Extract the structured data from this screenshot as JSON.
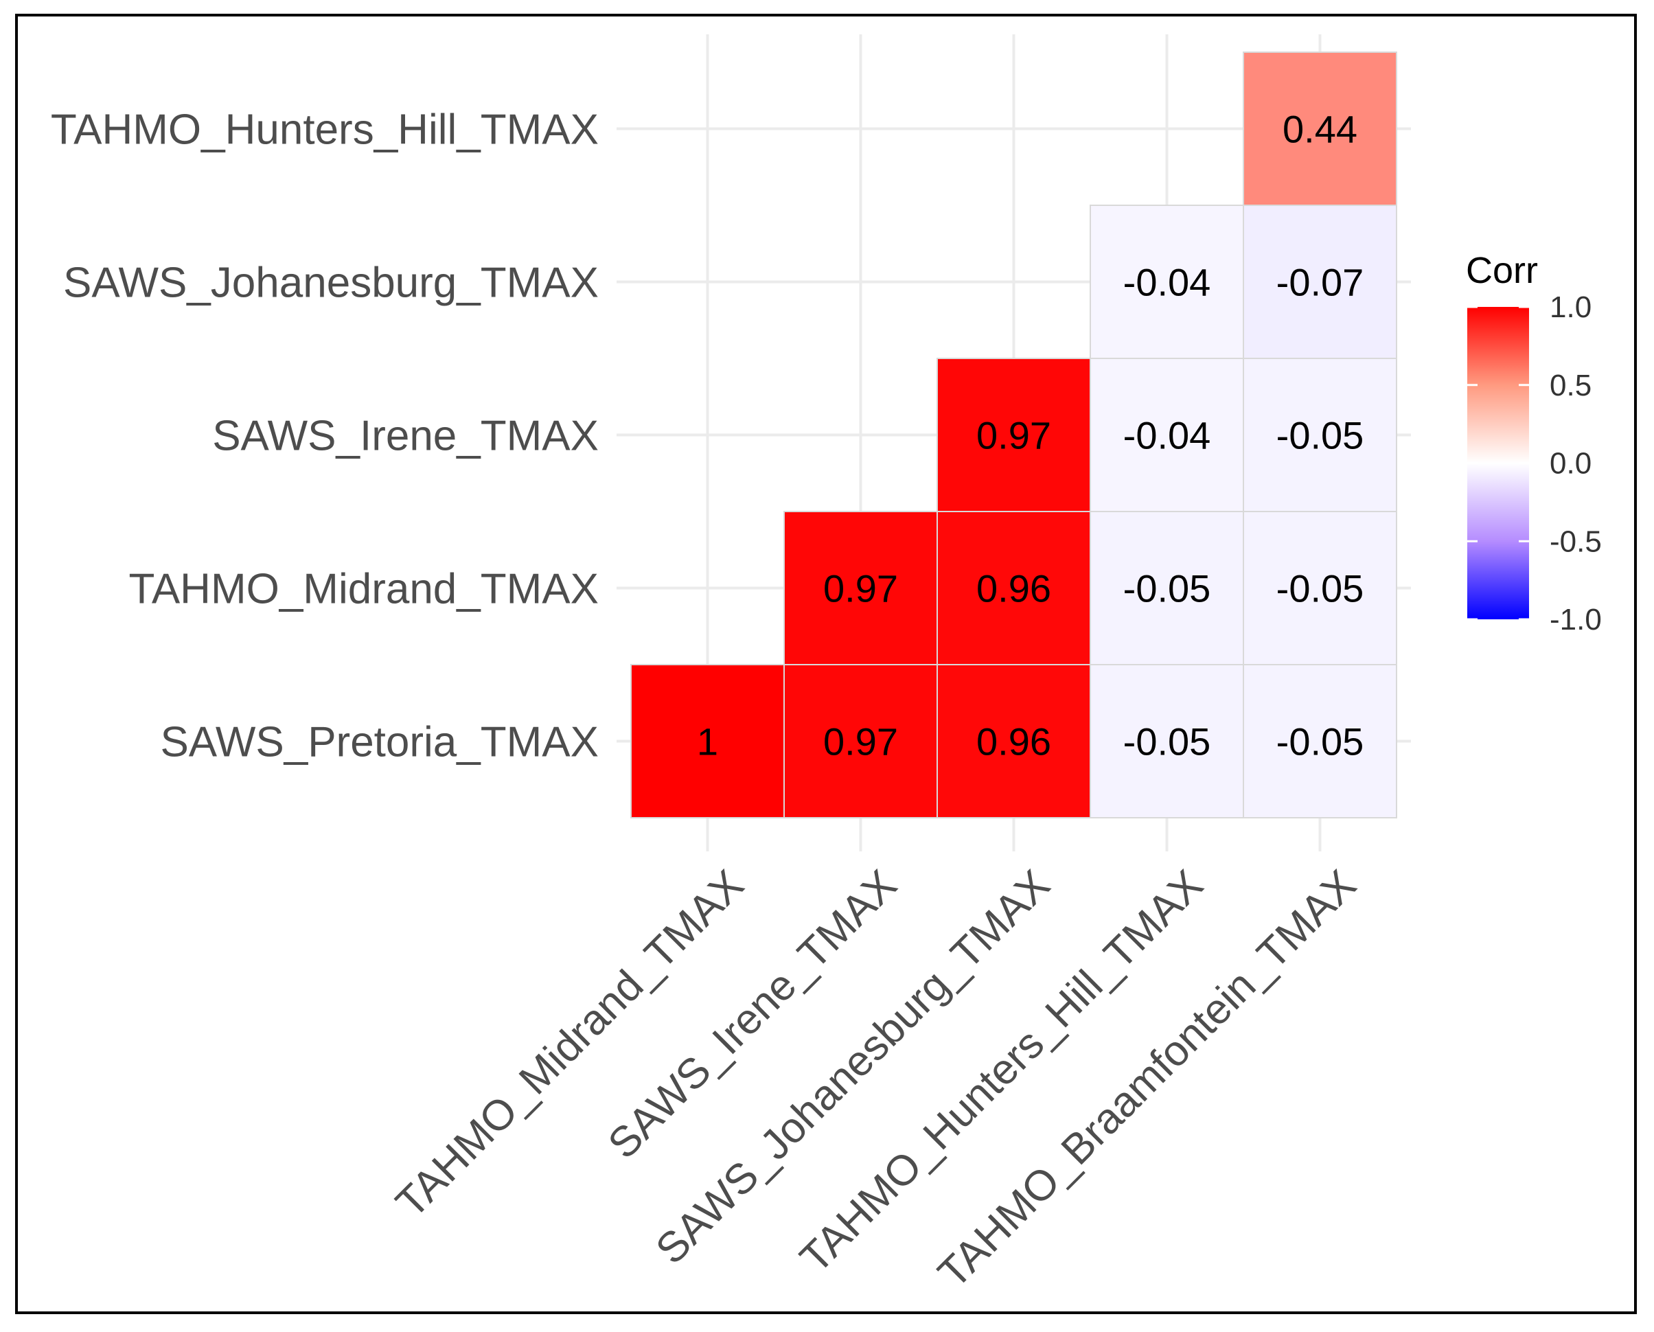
{
  "chart_data": {
    "type": "heatmap",
    "title": "",
    "x_categories": [
      "TAHMO_Midrand_TMAX",
      "SAWS_Irene_TMAX",
      "SAWS_Johanesburg_TMAX",
      "TAHMO_Hunters_Hill_TMAX",
      "TAHMO_Braamfontein_TMAX"
    ],
    "y_categories": [
      "SAWS_Pretoria_TMAX",
      "TAHMO_Midrand_TMAX",
      "SAWS_Irene_TMAX",
      "SAWS_Johanesburg_TMAX",
      "TAHMO_Hunters_Hill_TMAX"
    ],
    "cells": [
      {
        "x": "TAHMO_Midrand_TMAX",
        "y": "SAWS_Pretoria_TMAX",
        "value": 1,
        "label": "1"
      },
      {
        "x": "SAWS_Irene_TMAX",
        "y": "SAWS_Pretoria_TMAX",
        "value": 0.97,
        "label": "0.97"
      },
      {
        "x": "SAWS_Johanesburg_TMAX",
        "y": "SAWS_Pretoria_TMAX",
        "value": 0.96,
        "label": "0.96"
      },
      {
        "x": "TAHMO_Hunters_Hill_TMAX",
        "y": "SAWS_Pretoria_TMAX",
        "value": -0.05,
        "label": "-0.05"
      },
      {
        "x": "TAHMO_Braamfontein_TMAX",
        "y": "SAWS_Pretoria_TMAX",
        "value": -0.05,
        "label": "-0.05"
      },
      {
        "x": "SAWS_Irene_TMAX",
        "y": "TAHMO_Midrand_TMAX",
        "value": 0.97,
        "label": "0.97"
      },
      {
        "x": "SAWS_Johanesburg_TMAX",
        "y": "TAHMO_Midrand_TMAX",
        "value": 0.96,
        "label": "0.96"
      },
      {
        "x": "TAHMO_Hunters_Hill_TMAX",
        "y": "TAHMO_Midrand_TMAX",
        "value": -0.05,
        "label": "-0.05"
      },
      {
        "x": "TAHMO_Braamfontein_TMAX",
        "y": "TAHMO_Midrand_TMAX",
        "value": -0.05,
        "label": "-0.05"
      },
      {
        "x": "SAWS_Johanesburg_TMAX",
        "y": "SAWS_Irene_TMAX",
        "value": 0.97,
        "label": "0.97"
      },
      {
        "x": "TAHMO_Hunters_Hill_TMAX",
        "y": "SAWS_Irene_TMAX",
        "value": -0.04,
        "label": "-0.04"
      },
      {
        "x": "TAHMO_Braamfontein_TMAX",
        "y": "SAWS_Irene_TMAX",
        "value": -0.05,
        "label": "-0.05"
      },
      {
        "x": "TAHMO_Hunters_Hill_TMAX",
        "y": "SAWS_Johanesburg_TMAX",
        "value": -0.04,
        "label": "-0.04"
      },
      {
        "x": "TAHMO_Braamfontein_TMAX",
        "y": "SAWS_Johanesburg_TMAX",
        "value": -0.07,
        "label": "-0.07"
      },
      {
        "x": "TAHMO_Braamfontein_TMAX",
        "y": "TAHMO_Hunters_Hill_TMAX",
        "value": 0.44,
        "label": "0.44"
      }
    ],
    "legend": {
      "title": "Corr",
      "position": "right",
      "ticks": [
        "1.0",
        "0.5",
        "0.0",
        "-0.5",
        "-1.0"
      ],
      "tick_values": [
        1.0,
        0.5,
        0.0,
        -0.5,
        -1.0
      ],
      "range": [
        -1,
        1
      ],
      "colors": {
        "low": "#0000ff",
        "mid": "#ffffff",
        "high": "#ff0000"
      }
    },
    "grid": true
  }
}
